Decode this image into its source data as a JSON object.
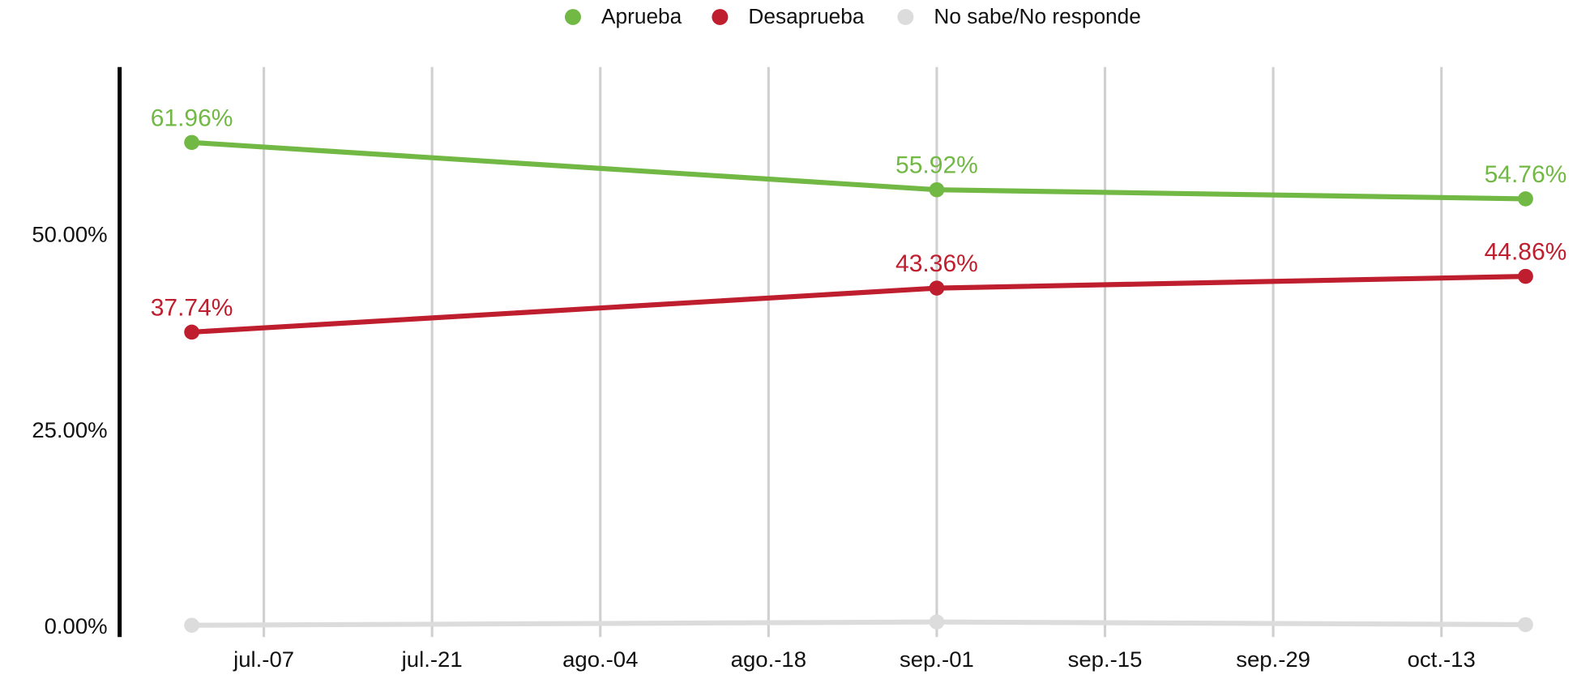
{
  "chart_data": {
    "type": "line",
    "x": [
      "07-01",
      "09-01",
      "10-20"
    ],
    "xlim": [
      "06-25",
      "10-23"
    ],
    "xticks": [
      {
        "value": "07-07",
        "label": "jul.-07"
      },
      {
        "value": "07-21",
        "label": "jul.-21"
      },
      {
        "value": "08-04",
        "label": "ago.-04"
      },
      {
        "value": "08-18",
        "label": "ago.-18"
      },
      {
        "value": "09-01",
        "label": "sep.-01"
      },
      {
        "value": "09-15",
        "label": "sep.-15"
      },
      {
        "value": "09-29",
        "label": "sep.-29"
      },
      {
        "value": "10-13",
        "label": "oct.-13"
      }
    ],
    "ylim": [
      -1.2,
      71.6
    ],
    "yticks": [
      {
        "value": 0,
        "label": "0.00%"
      },
      {
        "value": 25,
        "label": "25.00%"
      },
      {
        "value": 50,
        "label": "50.00%"
      }
    ],
    "grid": "x",
    "legend": "top",
    "series": [
      {
        "name": "Aprueba",
        "color": "#72b844",
        "values": [
          61.96,
          55.92,
          54.76
        ],
        "value_labels": [
          "61.96%",
          "55.92%",
          "54.76%"
        ]
      },
      {
        "name": "Desaprueba",
        "color": "#bf1e2e",
        "values": [
          37.74,
          43.36,
          44.86
        ],
        "value_labels": [
          "37.74%",
          "43.36%",
          "44.86%"
        ]
      },
      {
        "name": "No sabe/No responde",
        "color": "#dcdcdc",
        "values": [
          0.3,
          0.72,
          0.38
        ]
      }
    ]
  }
}
